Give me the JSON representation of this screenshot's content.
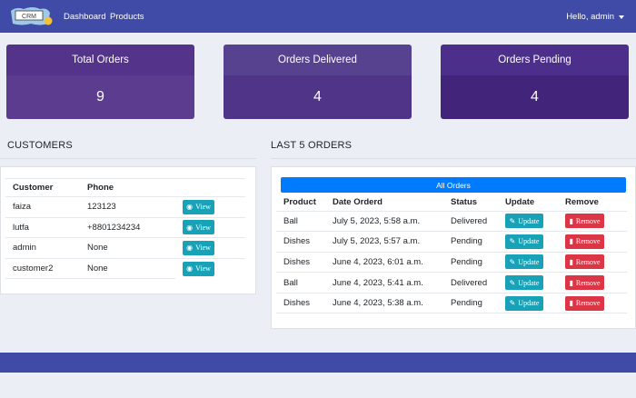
{
  "navbar": {
    "logo_text": "CRM",
    "links": [
      "Dashboard",
      "Products"
    ],
    "user_greeting": "Hello, admin"
  },
  "stats": [
    {
      "label": "Total Orders",
      "value": "9"
    },
    {
      "label": "Orders Delivered",
      "value": "4"
    },
    {
      "label": "Orders Pending",
      "value": "4"
    }
  ],
  "customers": {
    "title": "CUSTOMERS",
    "headers": [
      "Customer",
      "Phone"
    ],
    "rows": [
      {
        "name": "faiza",
        "phone": "123123"
      },
      {
        "name": "lutfa",
        "phone": "+8801234234"
      },
      {
        "name": "admin",
        "phone": "None"
      },
      {
        "name": "customer2",
        "phone": "None"
      }
    ],
    "view_label": "View"
  },
  "orders": {
    "title": "LAST 5 ORDERS",
    "all_orders_label": "All Orders",
    "headers": [
      "Product",
      "Date Orderd",
      "Status",
      "Update",
      "Remove"
    ],
    "rows": [
      {
        "product": "Ball",
        "date": "July 5, 2023, 5:58 a.m.",
        "status": "Delivered"
      },
      {
        "product": "Dishes",
        "date": "July 5, 2023, 5:57 a.m.",
        "status": "Pending"
      },
      {
        "product": "Dishes",
        "date": "June 4, 2023, 6:01 a.m.",
        "status": "Pending"
      },
      {
        "product": "Ball",
        "date": "June 4, 2023, 5:41 a.m.",
        "status": "Delivered"
      },
      {
        "product": "Dishes",
        "date": "June 4, 2023, 5:38 a.m.",
        "status": "Pending"
      }
    ],
    "update_label": "Update",
    "remove_label": "Remove"
  },
  "colors": {
    "navbar": "#3f4ba6",
    "stat_card": "#54338a",
    "info_button": "#17a2b8",
    "danger_button": "#dc3545",
    "primary_button": "#007bff"
  }
}
